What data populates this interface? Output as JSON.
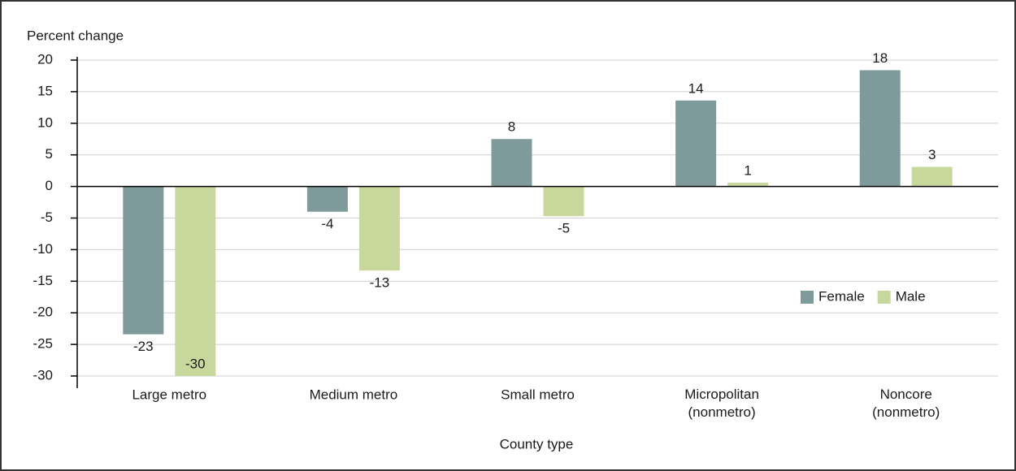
{
  "chart_data": {
    "type": "bar",
    "y_axis_label": "Percent change",
    "x_axis_label": "County type",
    "categories": [
      "Large metro",
      "Medium metro",
      "Small metro",
      "Micropolitan (nonmetro)",
      "Noncore (nonmetro)"
    ],
    "series": [
      {
        "name": "Female",
        "color": "#7f9a9a",
        "values": [
          -23.4,
          -4,
          7.5,
          13.6,
          18.4
        ],
        "value_labels": [
          "-23",
          "-4",
          "8",
          "14",
          "18"
        ]
      },
      {
        "name": "Male",
        "color": "#c8d89c",
        "values": [
          -30,
          -13.3,
          -4.7,
          0.6,
          3.1
        ],
        "value_labels": [
          "-30",
          "-13",
          "-5",
          "1",
          "3"
        ]
      }
    ],
    "ylim": [
      -30,
      20
    ],
    "yticks": [
      -30,
      -25,
      -20,
      -15,
      -10,
      -5,
      0,
      5,
      10,
      15,
      20
    ],
    "grid": true,
    "legend": "right"
  }
}
